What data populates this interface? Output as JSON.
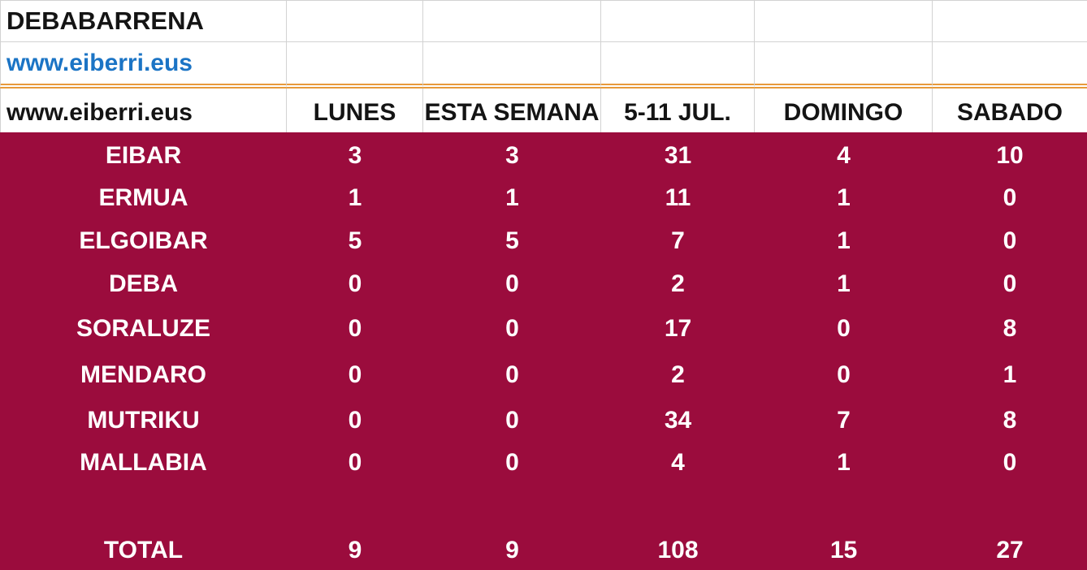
{
  "colors": {
    "maroon_bg": "#9b0c3d",
    "link_blue": "#1b74c5",
    "divider_orange": "#e79a3b",
    "gridline_gray": "#d2d2d2",
    "text_dark": "#141414",
    "text_light": "#ffffff"
  },
  "top": {
    "title": "DEBABARRENA",
    "website": "www.eiberri.eus"
  },
  "table": {
    "header": {
      "label": "www.eiberri.eus",
      "columns": [
        "LUNES",
        "ESTA SEMANA",
        "5-11 JUL.",
        "DOMINGO",
        "SABADO"
      ]
    },
    "rows": [
      {
        "name": "EIBAR",
        "values": [
          "3",
          "3",
          "31",
          "4",
          "10"
        ]
      },
      {
        "name": "ERMUA",
        "values": [
          "1",
          "1",
          "11",
          "1",
          "0"
        ]
      },
      {
        "name": "ELGOIBAR",
        "values": [
          "5",
          "5",
          "7",
          "1",
          "0"
        ]
      },
      {
        "name": "DEBA",
        "values": [
          "0",
          "0",
          "2",
          "1",
          "0"
        ]
      },
      {
        "name": "SORALUZE",
        "values": [
          "0",
          "0",
          "17",
          "0",
          "8"
        ]
      },
      {
        "name": "MENDARO",
        "values": [
          "0",
          "0",
          "2",
          "0",
          "1"
        ]
      },
      {
        "name": "MUTRIKU",
        "values": [
          "0",
          "0",
          "34",
          "7",
          "8"
        ]
      },
      {
        "name": "MALLABIA",
        "values": [
          "0",
          "0",
          "4",
          "1",
          "0"
        ]
      },
      {
        "name": "",
        "values": [
          "",
          "",
          "",
          "",
          ""
        ]
      },
      {
        "name": "TOTAL",
        "values": [
          "9",
          "9",
          "108",
          "15",
          "27"
        ]
      }
    ]
  }
}
